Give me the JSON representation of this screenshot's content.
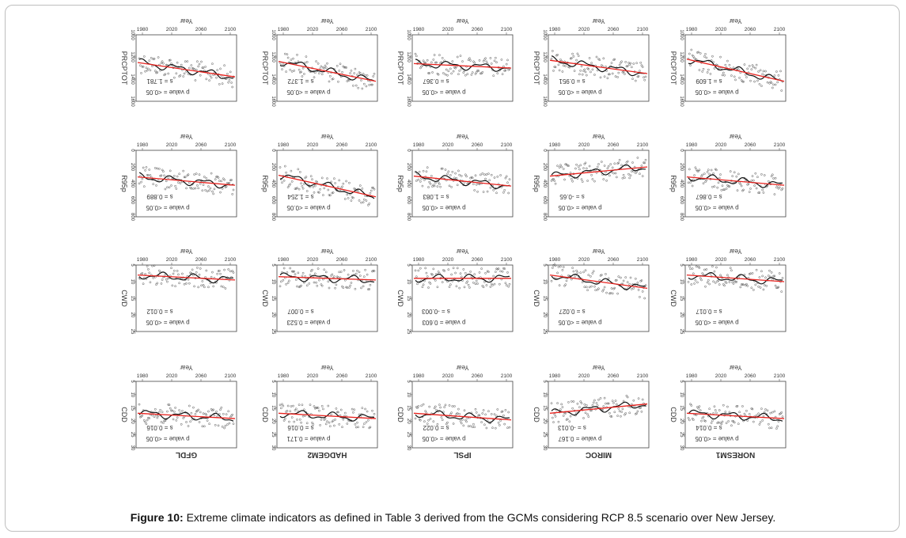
{
  "caption": {
    "label": "Figure 10:",
    "text": "Extreme climate indicators as defined in Table 3 derived from the GCMs considering RCP 8.5 scenario over New Jersey."
  },
  "colors": {
    "trend": "#e8221e",
    "smooth": "#111111",
    "points": "#555555"
  },
  "chart_data": {
    "type": "scatter",
    "x_label": "Year",
    "x_ticks": [
      "1980",
      "2020",
      "2060",
      "2100"
    ],
    "xlim": [
      1980,
      2100
    ],
    "note": "Panel images in the original are printed mirrored/upside-down.",
    "models": [
      "GFDL",
      "HADGEM2",
      "IPSL",
      "MIROC",
      "NORESM1"
    ],
    "rows": [
      {
        "indicator": "PRCPTOT",
        "y_ticks": [
          "1000",
          "1200",
          "1400",
          "1600"
        ],
        "panels": [
          {
            "model": "GFDL",
            "s": "s = 1.781",
            "p": "p value = <0.05",
            "trend_start": 1250,
            "trend_end": 1380
          },
          {
            "model": "HADGEM2",
            "s": "s = 1.372",
            "p": "p value = <0.05",
            "trend_start": 1240,
            "trend_end": 1420
          },
          {
            "model": "IPSL",
            "s": "s = 0.367",
            "p": "p value = <0.05",
            "trend_start": 1260,
            "trend_end": 1300
          },
          {
            "model": "MIROC",
            "s": "s = 0.951",
            "p": "p value = <0.05",
            "trend_start": 1230,
            "trend_end": 1350
          },
          {
            "model": "NORESM1",
            "s": "s = 1.609",
            "p": "p value = <0.05",
            "trend_start": 1220,
            "trend_end": 1420
          }
        ]
      },
      {
        "indicator": "R95p",
        "y_ticks": [
          "0",
          "200",
          "400",
          "600",
          "800"
        ],
        "panels": [
          {
            "model": "GFDL",
            "s": "s = 0.889",
            "p": "p value = <0.05",
            "trend_start": 320,
            "trend_end": 420
          },
          {
            "model": "HADGEM2",
            "s": "s = 1.254",
            "p": "p value = <0.05",
            "trend_start": 300,
            "trend_end": 560
          },
          {
            "model": "IPSL",
            "s": "s = 1.083",
            "p": "p value = <0.05",
            "trend_start": 310,
            "trend_end": 430
          },
          {
            "model": "MIROC",
            "s": "s = -0.65",
            "p": "p value = <0.05",
            "trend_start": 310,
            "trend_end": 200
          },
          {
            "model": "NORESM1",
            "s": "s = 0.867",
            "p": "p value = <0.05",
            "trend_start": 320,
            "trend_end": 420
          }
        ]
      },
      {
        "indicator": "CWD",
        "y_ticks": [
          "5",
          "10",
          "15",
          "20",
          "25"
        ],
        "panels": [
          {
            "model": "GFDL",
            "s": "s = 0.012",
            "p": "p value = <0.05",
            "trend_start": 8,
            "trend_end": 9.5
          },
          {
            "model": "HADGEM2",
            "s": "s = 0.007",
            "p": "p value = 0.523",
            "trend_start": 8.5,
            "trend_end": 9.5
          },
          {
            "model": "IPSL",
            "s": "s = -0.003",
            "p": "p value = 0.603",
            "trend_start": 9,
            "trend_end": 9
          },
          {
            "model": "MIROC",
            "s": "s = 0.027",
            "p": "p value = <0.05",
            "trend_start": 8,
            "trend_end": 12
          },
          {
            "model": "NORESM1",
            "s": "s = 0.017",
            "p": "p value = <0.05",
            "trend_start": 8,
            "trend_end": 10
          }
        ]
      },
      {
        "indicator": "CDD",
        "y_ticks": [
          "5",
          "10",
          "15",
          "20",
          "25",
          "30"
        ],
        "panels": [
          {
            "model": "GFDL",
            "s": "s = 0.016",
            "p": "p value = <0.05",
            "trend_start": 17,
            "trend_end": 19
          },
          {
            "model": "HADGEM2",
            "s": "s = 0.016",
            "p": "p value = 0.171",
            "trend_start": 17,
            "trend_end": 19
          },
          {
            "model": "IPSL",
            "s": "s = 0.022",
            "p": "p value = <0.05",
            "trend_start": 17,
            "trend_end": 19.5
          },
          {
            "model": "MIROC",
            "s": "s = -0.013",
            "p": "p value = 0.167",
            "trend_start": 17,
            "trend_end": 13.5
          },
          {
            "model": "NORESM1",
            "s": "s = 0.014",
            "p": "p value = <0.05",
            "trend_start": 17,
            "trend_end": 19
          }
        ]
      }
    ]
  }
}
